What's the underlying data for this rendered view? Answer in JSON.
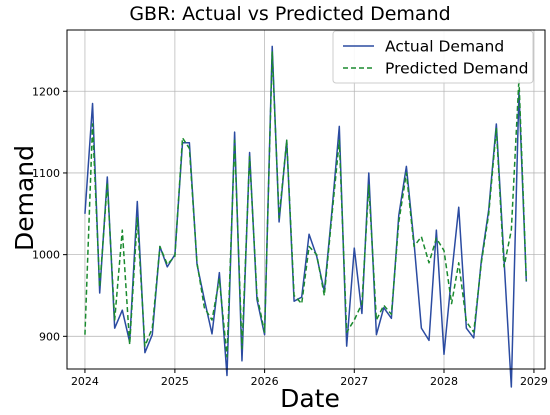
{
  "chart_data": {
    "type": "line",
    "title": "GBR: Actual vs Predicted Demand",
    "xlabel": "Date",
    "ylabel": "Demand",
    "x_start": "2024-01",
    "x": [
      "2024-01",
      "2024-02",
      "2024-03",
      "2024-04",
      "2024-05",
      "2024-06",
      "2024-07",
      "2024-08",
      "2024-09",
      "2024-10",
      "2024-11",
      "2024-12",
      "2025-01",
      "2025-02",
      "2025-03",
      "2025-04",
      "2025-05",
      "2025-06",
      "2025-07",
      "2025-08",
      "2025-09",
      "2025-10",
      "2025-11",
      "2025-12",
      "2026-01",
      "2026-02",
      "2026-03",
      "2026-04",
      "2026-05",
      "2026-06",
      "2026-07",
      "2026-08",
      "2026-09",
      "2026-10",
      "2026-11",
      "2026-12",
      "2027-01",
      "2027-02",
      "2027-03",
      "2027-04",
      "2027-05",
      "2027-06",
      "2027-07",
      "2027-08",
      "2027-09",
      "2027-10",
      "2027-11",
      "2027-12",
      "2028-01",
      "2028-02",
      "2028-03",
      "2028-04",
      "2028-05",
      "2028-06",
      "2028-07",
      "2028-08",
      "2028-09",
      "2028-10",
      "2028-11",
      "2028-12"
    ],
    "xlim": [
      "2023-10-20",
      "2029-02-15"
    ],
    "ylim": [
      860,
      1275
    ],
    "x_ticks": [
      "2024",
      "2025",
      "2026",
      "2027",
      "2028",
      "2029"
    ],
    "y_ticks": [
      900,
      1000,
      1100,
      1200
    ],
    "grid": true,
    "legend_position": "top-right",
    "series": [
      {
        "name": "Actual Demand",
        "color": "#2b4ba1",
        "style": "solid",
        "values": [
          1050,
          1185,
          953,
          1095,
          910,
          932,
          893,
          1065,
          880,
          902,
          1010,
          985,
          1000,
          1137,
          1137,
          988,
          945,
          903,
          978,
          852,
          1150,
          870,
          1125,
          945,
          902,
          1255,
          1040,
          1140,
          943,
          948,
          1025,
          998,
          955,
          1050,
          1157,
          888,
          1008,
          928,
          1100,
          902,
          935,
          922,
          1048,
          1108,
          1015,
          910,
          895,
          1030,
          878,
          975,
          1058,
          910,
          898,
          993,
          1055,
          1160,
          995,
          838,
          1200,
          967
        ]
      },
      {
        "name": "Predicted Demand",
        "color": "#1a8a2e",
        "style": "dashed",
        "values": [
          902,
          1160,
          960,
          1088,
          920,
          1030,
          890,
          1045,
          888,
          910,
          1010,
          988,
          998,
          1143,
          1130,
          990,
          935,
          920,
          970,
          875,
          1140,
          885,
          1120,
          950,
          905,
          1248,
          1045,
          1140,
          950,
          940,
          1010,
          1000,
          950,
          1045,
          1140,
          905,
          920,
          940,
          1085,
          920,
          938,
          927,
          1040,
          1100,
          1010,
          1022,
          990,
          1020,
          1005,
          940,
          990,
          918,
          905,
          990,
          1050,
          1155,
          985,
          1030,
          1215,
          968
        ]
      }
    ]
  }
}
